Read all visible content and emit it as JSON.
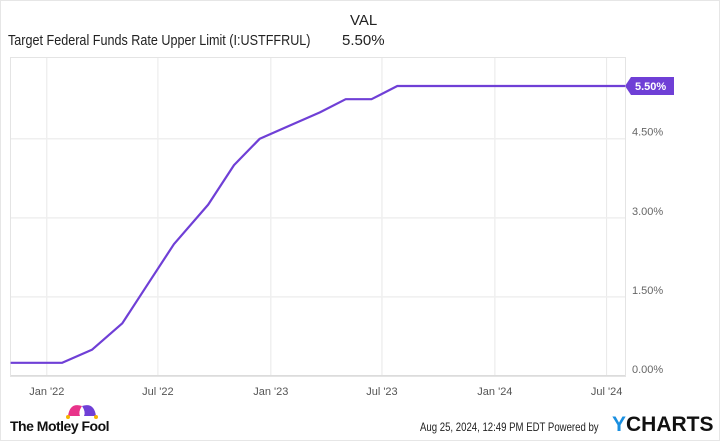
{
  "header": {
    "column_label": "VAL",
    "series_name": "Target Federal Funds Rate Upper Limit (I:USTFFRUL)",
    "series_value": "5.50%"
  },
  "chart_data": {
    "type": "line",
    "title": "",
    "xlabel": "",
    "ylabel": "",
    "x_ticks": [
      "Jan '22",
      "Jul '22",
      "Jan '23",
      "Jul '23",
      "Jan '24",
      "Jul '24"
    ],
    "x_tick_dates": [
      "2022-01-01",
      "2022-07-01",
      "2023-01-01",
      "2023-07-01",
      "2024-01-01",
      "2024-07-01"
    ],
    "y_ticks": [
      "0.00%",
      "1.50%",
      "3.00%",
      "4.50%"
    ],
    "y_tick_values": [
      0,
      1.5,
      3.0,
      4.5
    ],
    "xlim": [
      "2021-11-03",
      "2024-07-31"
    ],
    "ylim": [
      0,
      5.5
    ],
    "grid": true,
    "last_value_label": "5.50%",
    "series": [
      {
        "name": "Target Federal Funds Rate Upper Limit (I:USTFFRUL)",
        "color": "#6f3fd6",
        "x": [
          "2021-11-03",
          "2021-12-15",
          "2022-01-26",
          "2022-03-16",
          "2022-05-04",
          "2022-06-15",
          "2022-07-27",
          "2022-09-21",
          "2022-11-02",
          "2022-12-14",
          "2023-02-01",
          "2023-03-22",
          "2023-05-03",
          "2023-06-14",
          "2023-07-26",
          "2023-09-20",
          "2023-11-01",
          "2023-12-13",
          "2024-01-31",
          "2024-03-20",
          "2024-05-01",
          "2024-06-12",
          "2024-07-31"
        ],
        "values": [
          0.25,
          0.25,
          0.25,
          0.5,
          1.0,
          1.75,
          2.5,
          3.25,
          4.0,
          4.5,
          4.75,
          5.0,
          5.25,
          5.25,
          5.5,
          5.5,
          5.5,
          5.5,
          5.5,
          5.5,
          5.5,
          5.5,
          5.5
        ]
      }
    ]
  },
  "footer": {
    "brand_left": "The Motley Fool",
    "timestamp": "Aug 25, 2024, 12:49 PM EDT",
    "powered_by": "Powered by",
    "brand_right_y": "Y",
    "brand_right_rest": "CHARTS"
  }
}
